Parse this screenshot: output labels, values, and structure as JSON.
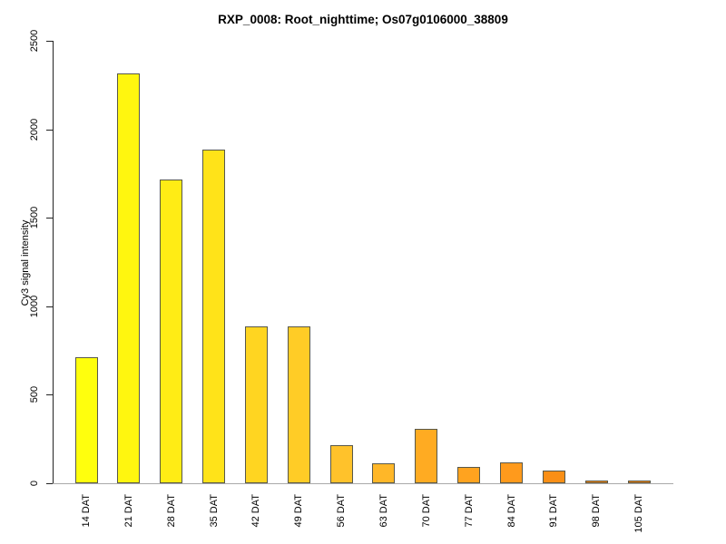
{
  "chart_data": {
    "type": "bar",
    "title": "RXP_0008: Root_nighttime; Os07g0106000_38809",
    "ylabel": "Cy3 signal intensity",
    "xlabel": "",
    "categories": [
      "14 DAT",
      "21 DAT",
      "28 DAT",
      "35 DAT",
      "42 DAT",
      "49 DAT",
      "56 DAT",
      "63 DAT",
      "70 DAT",
      "77 DAT",
      "84 DAT",
      "91 DAT",
      "98 DAT",
      "105 DAT"
    ],
    "values": [
      710,
      2315,
      1715,
      1885,
      885,
      885,
      215,
      115,
      305,
      90,
      120,
      72,
      15,
      13
    ],
    "bar_colors": [
      "#FFFF0D",
      "#FFF60F",
      "#FFEC15",
      "#FFE319",
      "#FFD521",
      "#FFCC26",
      "#FFC22B",
      "#FFB728",
      "#FFAB22",
      "#FFA31F",
      "#FF9A1C",
      "#FA8F16",
      "#F58711",
      "#F2830E"
    ],
    "bar_border_color": "#58584a",
    "axis_color": "#222222",
    "baseline_color": "#aaaaaa",
    "ylim": [
      0,
      2500
    ],
    "yticks": [
      0,
      500,
      1000,
      1500,
      2000,
      2500
    ],
    "grid": false,
    "legend": "none"
  }
}
